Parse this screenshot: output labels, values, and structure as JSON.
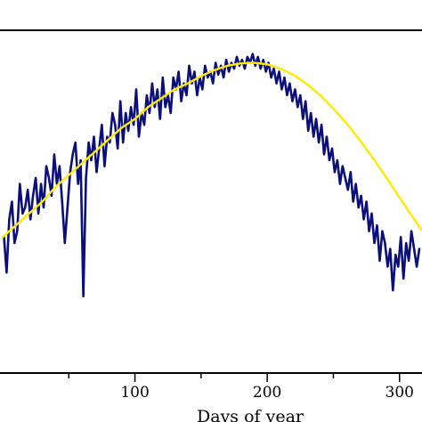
{
  "chart_data": {
    "type": "line",
    "title": "",
    "xlabel": "Days of year",
    "ylabel": "",
    "xlim": [
      -2,
      317
    ],
    "ylim": [
      -8,
      108
    ],
    "x_ticks_major": [
      100,
      200,
      300
    ],
    "x_tick_labels": [
      "100",
      "200",
      "300"
    ],
    "x_ticks_minor": [
      50,
      150,
      250
    ],
    "grid": false,
    "legend": "none",
    "series": [
      {
        "style": "observed",
        "color": "#0a0f7a",
        "x": [
          1,
          3,
          5,
          7,
          9,
          11,
          13,
          15,
          17,
          19,
          21,
          23,
          25,
          27,
          29,
          31,
          33,
          35,
          37,
          39,
          41,
          43,
          45,
          47,
          49,
          51,
          53,
          55,
          57,
          59,
          61,
          63,
          65,
          67,
          69,
          71,
          73,
          75,
          77,
          79,
          81,
          83,
          85,
          87,
          89,
          91,
          93,
          95,
          97,
          99,
          101,
          103,
          105,
          107,
          109,
          111,
          113,
          115,
          117,
          119,
          121,
          123,
          125,
          127,
          129,
          131,
          133,
          135,
          137,
          139,
          141,
          143,
          145,
          147,
          149,
          151,
          153,
          155,
          157,
          159,
          161,
          163,
          165,
          167,
          169,
          171,
          173,
          175,
          177,
          179,
          181,
          183,
          185,
          187,
          189,
          191,
          193,
          195,
          197,
          199,
          201,
          203,
          205,
          207,
          209,
          211,
          213,
          215,
          217,
          219,
          221,
          223,
          225,
          227,
          229,
          231,
          233,
          235,
          237,
          239,
          241,
          243,
          245,
          247,
          249,
          251,
          253,
          255,
          257,
          259,
          261,
          263,
          265,
          267,
          269,
          271,
          273,
          275,
          277,
          279,
          281,
          283,
          285,
          287,
          289,
          291,
          293,
          295,
          297,
          299,
          301,
          303,
          305,
          307,
          309,
          311,
          313,
          315
        ],
        "y": [
          38,
          26,
          44,
          50,
          36,
          40,
          56,
          46,
          48,
          54,
          44,
          52,
          58,
          46,
          56,
          48,
          62,
          58,
          52,
          66,
          56,
          62,
          50,
          36,
          48,
          60,
          66,
          70,
          56,
          64,
          18,
          58,
          70,
          64,
          72,
          60,
          68,
          76,
          62,
          72,
          70,
          80,
          76,
          68,
          84,
          70,
          80,
          74,
          82,
          76,
          88,
          72,
          80,
          76,
          86,
          80,
          90,
          82,
          88,
          78,
          92,
          82,
          86,
          80,
          92,
          88,
          94,
          84,
          90,
          86,
          96,
          90,
          94,
          86,
          92,
          88,
          96,
          92,
          94,
          90,
          97,
          93,
          96,
          92,
          98,
          94,
          97,
          95,
          99,
          96,
          98,
          95,
          99,
          97,
          100,
          96,
          99,
          95,
          98,
          94,
          97,
          92,
          95,
          90,
          94,
          88,
          92,
          86,
          90,
          84,
          88,
          82,
          86,
          78,
          84,
          74,
          80,
          72,
          78,
          70,
          76,
          66,
          72,
          64,
          68,
          60,
          64,
          56,
          62,
          58,
          54,
          60,
          50,
          56,
          48,
          52,
          44,
          50,
          40,
          46,
          36,
          42,
          30,
          40,
          36,
          28,
          34,
          20,
          32,
          28,
          38,
          24,
          36,
          30,
          40,
          34,
          28,
          34
        ]
      },
      {
        "style": "fitted",
        "color": "#ffea00",
        "x": [
          0,
          10,
          20,
          30,
          40,
          50,
          60,
          70,
          80,
          90,
          100,
          110,
          120,
          130,
          140,
          150,
          160,
          170,
          180,
          190,
          200,
          210,
          220,
          230,
          240,
          250,
          260,
          270,
          280,
          290,
          300,
          310,
          317
        ],
        "y": [
          38,
          42,
          46,
          50,
          55,
          59,
          63,
          67,
          71,
          75,
          78,
          82,
          85,
          88,
          90,
          92.5,
          94.5,
          96,
          96.8,
          97,
          96.5,
          95,
          92.8,
          89.8,
          86,
          81.5,
          76.5,
          70.8,
          64.7,
          58.2,
          51.4,
          44.8,
          40.3
        ]
      }
    ]
  }
}
